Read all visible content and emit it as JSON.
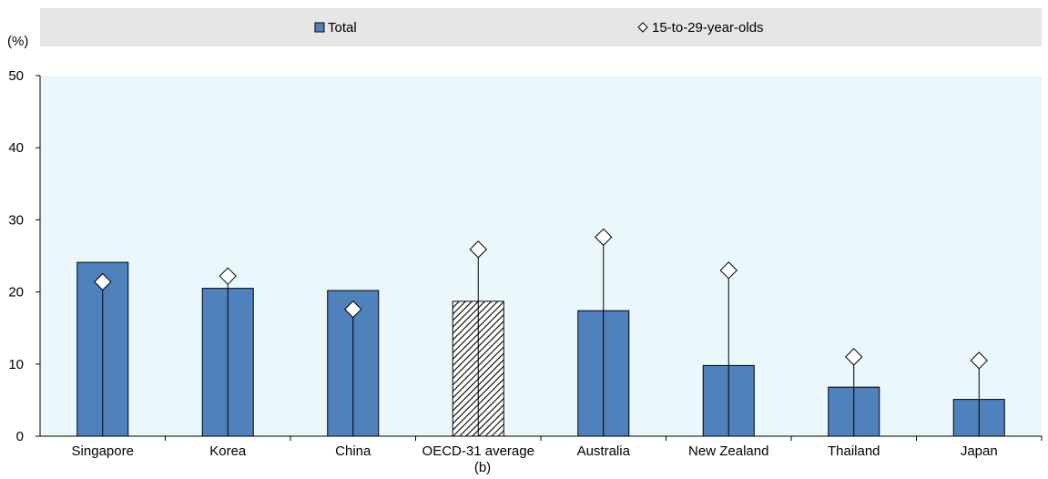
{
  "legend": {
    "total_label": "Total",
    "youth_label": "15-to-29-year-olds"
  },
  "y_unit_label": "(%)",
  "chart_data": {
    "type": "bar",
    "categories": [
      "Singapore",
      "Korea",
      "China",
      "OECD-31 average",
      "Australia",
      "New Zealand",
      "Thailand",
      "Japan"
    ],
    "category_note": "(b)",
    "series": [
      {
        "name": "Total",
        "values": [
          24.1,
          20.5,
          20.2,
          18.7,
          17.4,
          9.8,
          6.8,
          5.1
        ]
      },
      {
        "name": "15-to-29-year-olds",
        "values": [
          21.4,
          22.2,
          17.6,
          25.9,
          27.6,
          23.0,
          11.0,
          10.5
        ]
      }
    ],
    "highlight_category": "OECD-31 average",
    "ylim": [
      0,
      50
    ],
    "yticks": [
      0,
      10,
      20,
      30,
      40,
      50
    ],
    "grid": false,
    "legend_position": "top",
    "colors": {
      "total": "#4f81bd",
      "plot_background": "#eaf8fb",
      "legend_background": "#e6e6e6"
    }
  }
}
